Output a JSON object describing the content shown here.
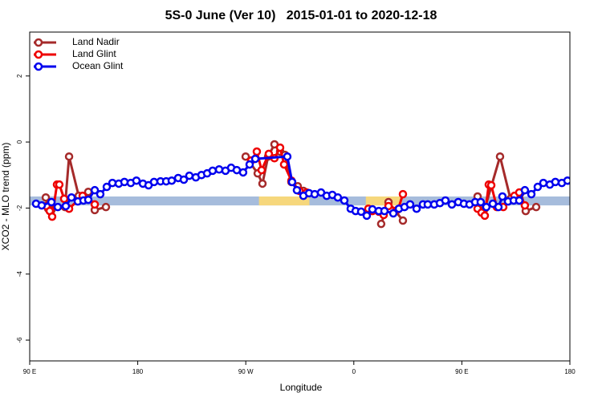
{
  "chart_data": {
    "type": "line",
    "title": "5S-0 June (Ver 10)   2015-01-01 to 2020-12-18",
    "xlabel": "Longitude",
    "ylabel": "XCO2 - MLO trend (ppm)",
    "xlim": [
      90,
      540
    ],
    "ylim": [
      -6.63,
      3.33
    ],
    "xticks": [
      {
        "value": 90,
        "label": "90 E"
      },
      180,
      {
        "value": 270,
        "label": "90 W"
      },
      {
        "value": 360,
        "label": "0"
      },
      {
        "value": 450,
        "label": "90 E"
      },
      {
        "value": 540,
        "label": "180"
      }
    ],
    "yticks": [
      2,
      0,
      -2,
      -4,
      -6
    ],
    "legend": "top-left",
    "bands": [
      {
        "x": [
          90,
          540
        ],
        "y": [
          -1.92,
          -1.65
        ],
        "color": "#a6bcdc"
      },
      {
        "x": [
          281,
          323
        ],
        "y": [
          -1.92,
          -1.65
        ],
        "color": "#f6d77c"
      },
      {
        "x": [
          370,
          400
        ],
        "y": [
          -1.92,
          -1.65
        ],
        "color": "#f6d77c"
      }
    ],
    "series": [
      {
        "name": "Land Nadir",
        "color": "#a52a2a",
        "x": [
          103.4,
          105.4,
          108.1,
          119.4,
          122.8,
          130.8,
          138.8,
          144.2,
          153.5,
          null,
          269.9,
          279.9,
          283.9,
          288.6,
          293.9,
          298.6,
          302.6,
          308.0,
          313.3,
          318.0,
          null,
          382.8,
          388.9,
          400.9,
          null,
          463.1,
          469.1,
          481.8,
          490.5,
          499.2,
          503.2,
          511.9
        ],
        "values": [
          -1.68,
          -2.02,
          -2.06,
          -1.97,
          -0.44,
          -1.63,
          -1.51,
          -2.06,
          -1.97,
          null,
          -0.44,
          -0.95,
          -1.26,
          -0.44,
          -0.07,
          -0.29,
          -0.39,
          -1.21,
          -1.34,
          -1.48,
          null,
          -2.48,
          -1.82,
          -2.38,
          null,
          -1.65,
          -2.02,
          -0.44,
          -1.72,
          -1.53,
          -2.09,
          -1.97
        ]
      },
      {
        "name": "Land Glint",
        "color": "#ee0000",
        "x": [
          104.0,
          106.7,
          108.7,
          112.7,
          114.7,
          118.7,
          122.8,
          134.1,
          144.2,
          null,
          274.5,
          279.2,
          283.2,
          289.2,
          293.9,
          298.6,
          301.9,
          308.0,
          314.7,
          320.7,
          null,
          372.1,
          375.5,
          380.8,
          384.9,
          388.9,
          396.9,
          400.9,
          null,
          463.1,
          466.4,
          469.1,
          472.4,
          474.5,
          479.1,
          484.5,
          493.8,
          497.8,
          502.5
        ],
        "values": [
          -1.94,
          -2.09,
          -2.26,
          -1.29,
          -1.29,
          -1.72,
          -2.02,
          -1.63,
          -1.89,
          null,
          -0.56,
          -0.29,
          -0.85,
          -0.36,
          -0.49,
          -0.17,
          -0.68,
          -1.17,
          -1.48,
          -1.53,
          null,
          -2.02,
          -2.09,
          -2.11,
          -2.21,
          -1.94,
          -2.04,
          -1.58,
          null,
          -2.02,
          -2.14,
          -2.23,
          -1.29,
          -1.31,
          -1.97,
          -1.97,
          -1.63,
          -1.53,
          -1.92
        ]
      },
      {
        "name": "Ocean Glint",
        "color": "#0000ee",
        "x": [
          95.3,
          100.0,
          108.1,
          113.4,
          120.1,
          124.8,
          130.1,
          134.8,
          138.8,
          144.2,
          148.8,
          154.2,
          158.9,
          164.2,
          168.9,
          174.2,
          178.9,
          184.3,
          189.0,
          193.6,
          199.0,
          203.7,
          208.3,
          213.7,
          218.4,
          223.0,
          228.4,
          233.1,
          237.8,
          242.4,
          247.8,
          253.1,
          257.8,
          262.5,
          267.8,
          273.2,
          277.9,
          304.6,
          308.6,
          312.6,
          318.0,
          322.7,
          327.4,
          332.7,
          337.4,
          342.1,
          346.7,
          352.1,
          357.4,
          361.5,
          366.1,
          370.8,
          375.5,
          380.8,
          385.5,
          392.9,
          397.6,
          402.2,
          406.9,
          412.3,
          417.6,
          421.6,
          427.0,
          431.7,
          436.3,
          441.7,
          447.0,
          451.7,
          456.4,
          461.1,
          465.7,
          470.4,
          475.8,
          480.5,
          483.8,
          488.5,
          493.2,
          497.8,
          502.5,
          507.9,
          513.2,
          517.9,
          523.3,
          527.9,
          533.3,
          538.0
        ],
        "values": [
          -1.87,
          -1.92,
          -1.82,
          -1.97,
          -1.94,
          -1.68,
          -1.8,
          -1.77,
          -1.75,
          -1.46,
          -1.58,
          -1.36,
          -1.24,
          -1.26,
          -1.21,
          -1.24,
          -1.17,
          -1.26,
          -1.31,
          -1.21,
          -1.19,
          -1.19,
          -1.17,
          -1.09,
          -1.14,
          -1.02,
          -1.07,
          -1.0,
          -0.95,
          -0.87,
          -0.83,
          -0.87,
          -0.78,
          -0.85,
          -0.92,
          -0.68,
          -0.51,
          -0.44,
          -1.21,
          -1.46,
          -1.63,
          -1.55,
          -1.58,
          -1.53,
          -1.63,
          -1.6,
          -1.68,
          -1.77,
          -2.02,
          -2.09,
          -2.11,
          -2.23,
          -2.04,
          -2.09,
          -2.09,
          -2.16,
          -2.02,
          -1.97,
          -1.89,
          -2.02,
          -1.89,
          -1.89,
          -1.89,
          -1.85,
          -1.77,
          -1.89,
          -1.82,
          -1.87,
          -1.89,
          -1.82,
          -1.82,
          -1.97,
          -1.87,
          -1.97,
          -1.65,
          -1.8,
          -1.77,
          -1.77,
          -1.46,
          -1.58,
          -1.36,
          -1.24,
          -1.29,
          -1.21,
          -1.24,
          -1.17
        ]
      }
    ]
  }
}
